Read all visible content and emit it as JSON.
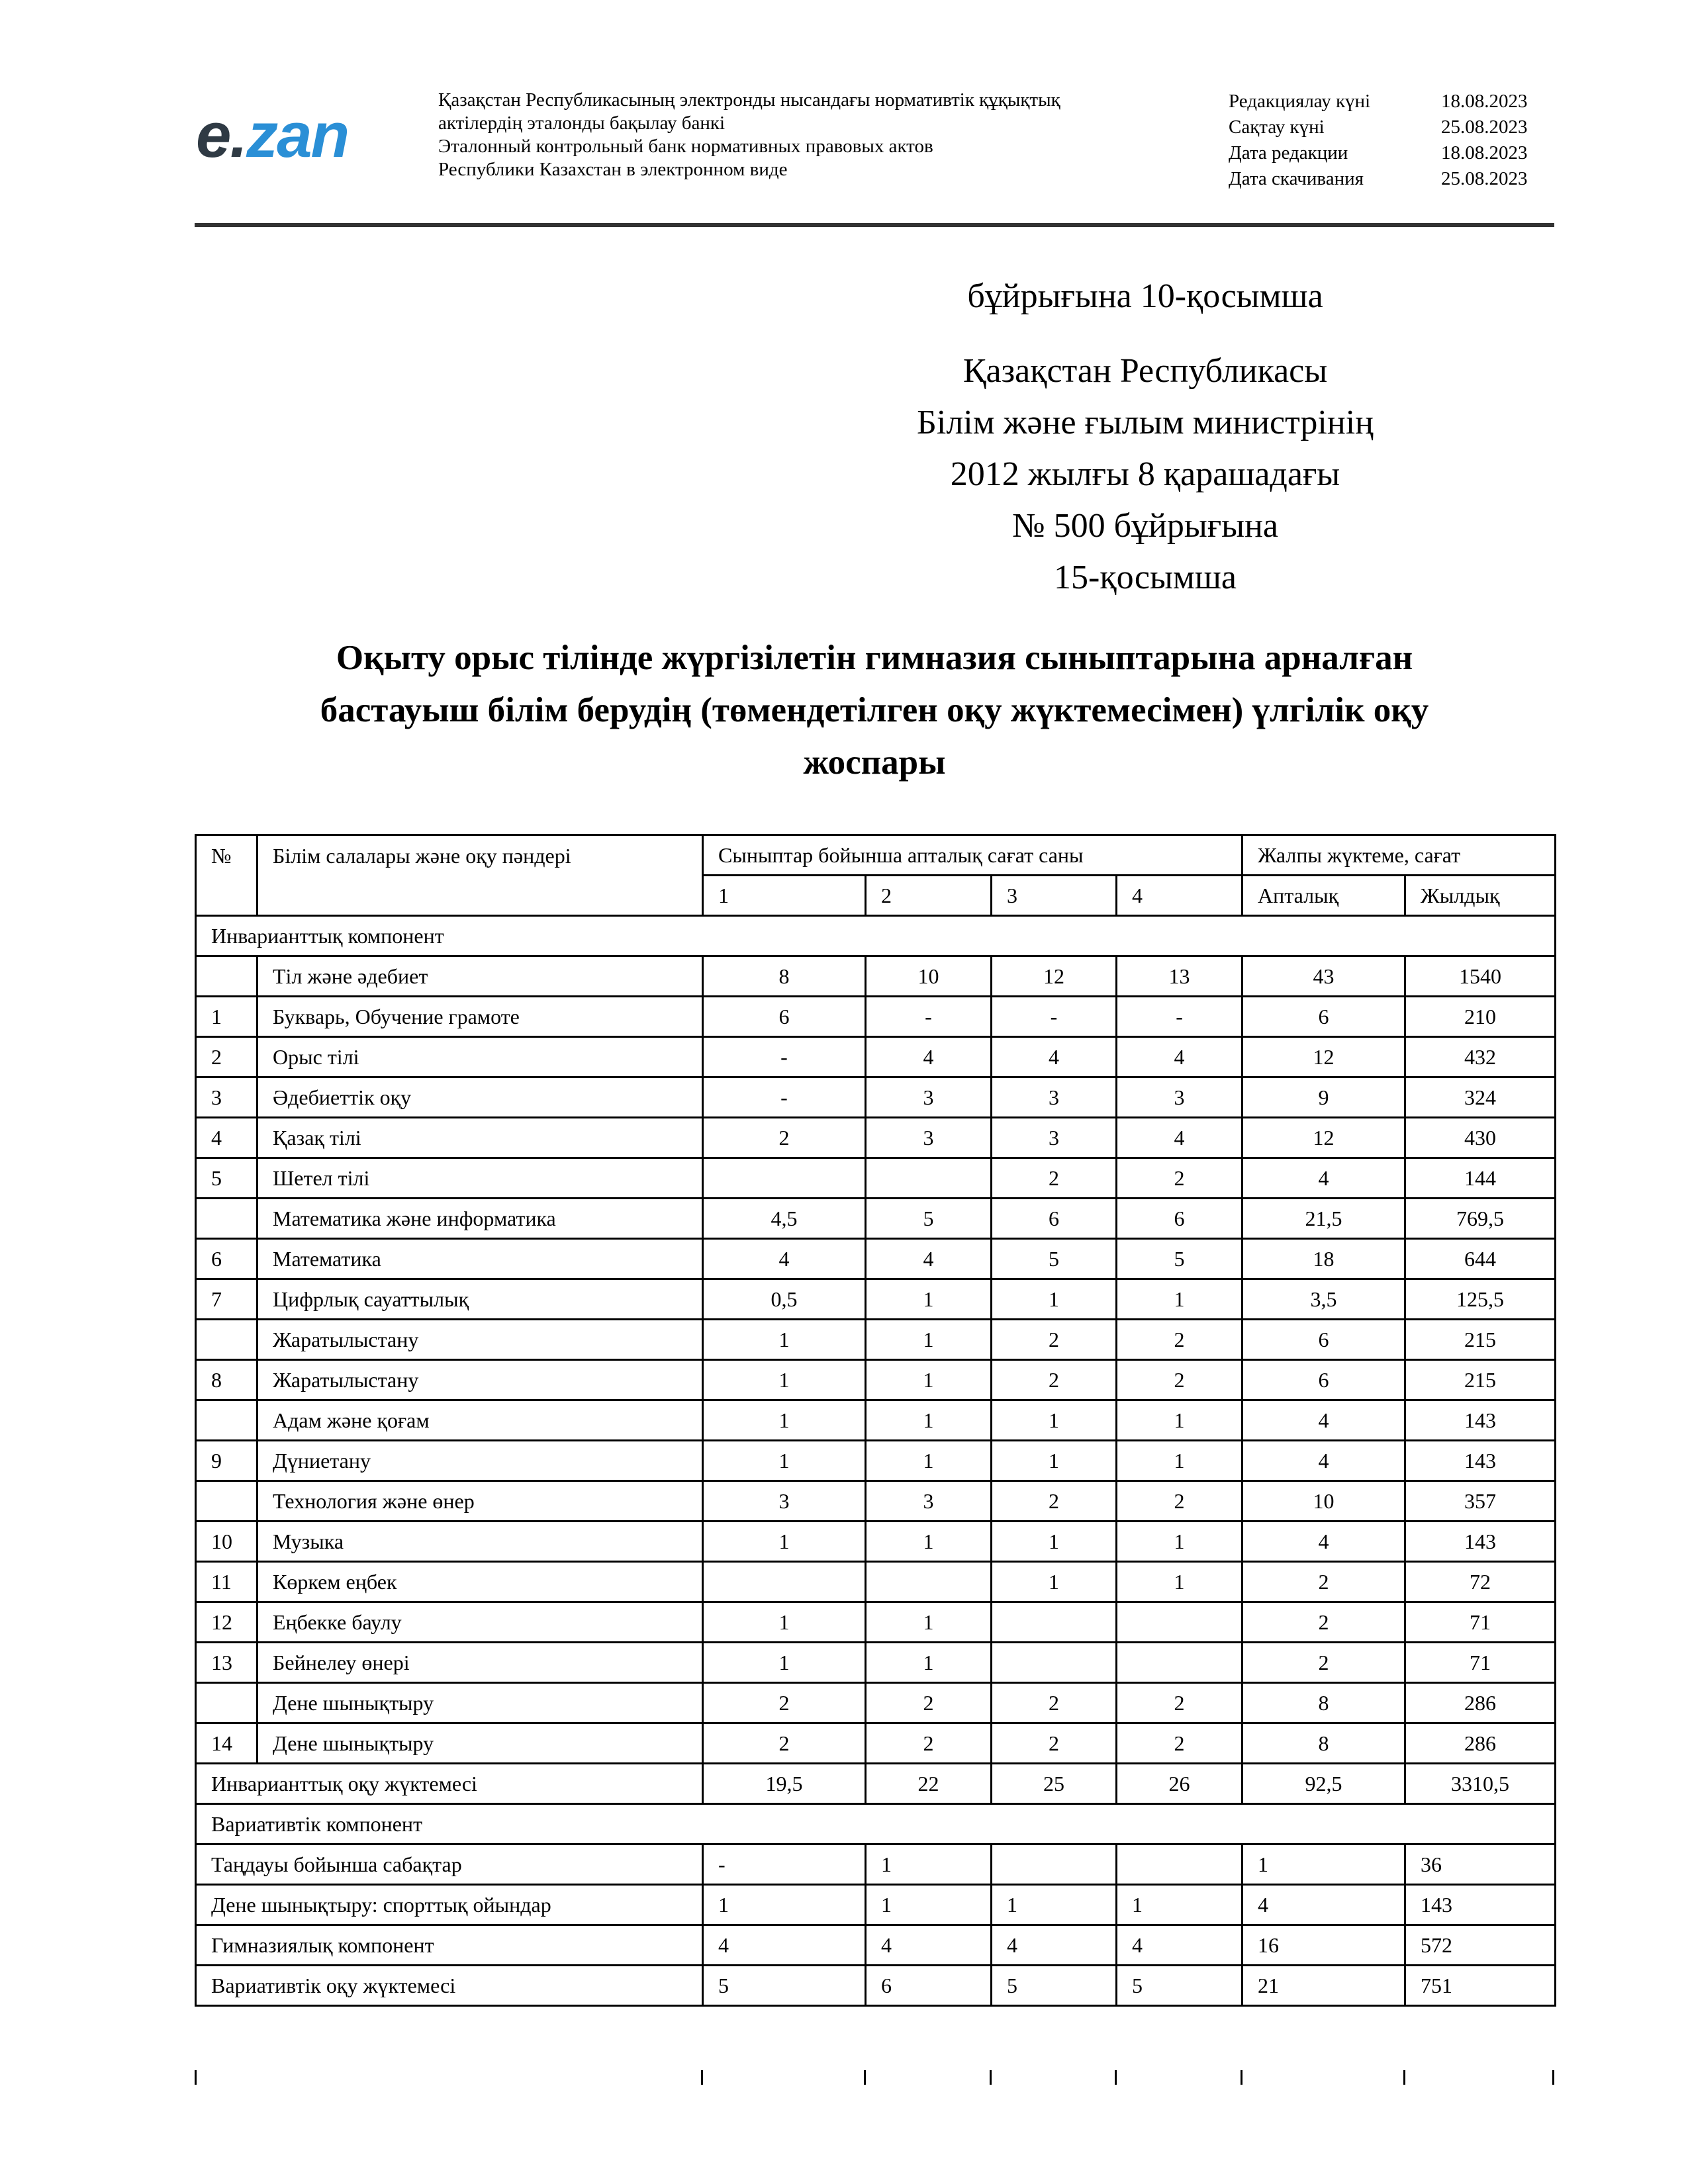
{
  "header": {
    "logo_text": "e.zan",
    "bank_lines": [
      "Қазақстан Республикасының электронды нысандағы нормативтік құқықтық",
      "актілердің эталонды бақылау банкі",
      "Эталонный контрольный банк нормативных правовых актов",
      "Республики Казахстан в электронном виде"
    ],
    "meta": [
      {
        "label": "Редакциялау күні",
        "value": "18.08.2023"
      },
      {
        "label": "Сақтау күні",
        "value": "25.08.2023"
      },
      {
        "label": "Дата редакции",
        "value": "18.08.2023"
      },
      {
        "label": "Дата скачивания",
        "value": "25.08.2023"
      }
    ]
  },
  "annex": {
    "line1": "бұйрығына 10-қосымша",
    "block": [
      "Қазақстан Республикасы",
      "Білім және ғылым министрінің",
      "2012 жылғы 8 қарашадағы",
      "№ 500 бұйрығына",
      "15-қосымша"
    ]
  },
  "title_lines": [
    "Оқыту орыс тілінде жүргізілетін гимназия сыныптарына арналған",
    "бастауыш білім берудің (төмендетілген оқу жүктемесімен) үлгілік оқу",
    "жоспары"
  ],
  "table": {
    "headers": {
      "num": "№",
      "subject": "Білім салалары және оқу пәндері",
      "weekly_by_class": "Сыныптар бойынша апталық сағат саны",
      "total": "Жалпы жүктеме, сағат",
      "classes": [
        "1",
        "2",
        "3",
        "4"
      ],
      "weekly": "Апталық",
      "yearly": "Жылдық"
    },
    "invariant_label": "Инварианттық компонент",
    "invariant_rows": [
      [
        "",
        "Тіл және әдебиет",
        "8",
        "10",
        "12",
        "13",
        "43",
        "1540"
      ],
      [
        "1",
        "Букварь, Обучение грамоте",
        "6",
        "-",
        "-",
        "-",
        "6",
        "210"
      ],
      [
        "2",
        "Орыс тілі",
        "-",
        "4",
        "4",
        "4",
        "12",
        "432"
      ],
      [
        "3",
        "Әдебиеттік оқу",
        "-",
        "3",
        "3",
        "3",
        "9",
        "324"
      ],
      [
        "4",
        "Қазақ тілі",
        "2",
        "3",
        "3",
        "4",
        "12",
        "430"
      ],
      [
        "5",
        "Шетел тілі",
        "",
        "",
        "2",
        "2",
        "4",
        "144"
      ],
      [
        "",
        "Математика және информатика",
        "4,5",
        "5",
        "6",
        "6",
        "21,5",
        "769,5"
      ],
      [
        "6",
        "Математика",
        "4",
        "4",
        "5",
        "5",
        "18",
        "644"
      ],
      [
        "7",
        "Цифрлық сауаттылық",
        "0,5",
        "1",
        "1",
        "1",
        "3,5",
        "125,5"
      ],
      [
        "",
        "Жаратылыстану",
        "1",
        "1",
        "2",
        "2",
        "6",
        "215"
      ],
      [
        "8",
        "Жаратылыстану",
        "1",
        "1",
        "2",
        "2",
        "6",
        "215"
      ],
      [
        "",
        "Адам және қоғам",
        "1",
        "1",
        "1",
        "1",
        "4",
        "143"
      ],
      [
        "9",
        "Дүниетану",
        "1",
        "1",
        "1",
        "1",
        "4",
        "143"
      ],
      [
        "",
        "Технология және өнер",
        "3",
        "3",
        "2",
        "2",
        "10",
        "357"
      ],
      [
        "10",
        "Музыка",
        "1",
        "1",
        "1",
        "1",
        "4",
        "143"
      ],
      [
        "11",
        "Көркем еңбек",
        "",
        "",
        "1",
        "1",
        "2",
        "72"
      ],
      [
        "12",
        "Еңбекке баулу",
        "1",
        "1",
        "",
        "",
        "2",
        "71"
      ],
      [
        "13",
        "Бейнелеу өнері",
        "1",
        "1",
        "",
        "",
        "2",
        "71"
      ],
      [
        "",
        "Дене шынықтыру",
        "2",
        "2",
        "2",
        "2",
        "8",
        "286"
      ],
      [
        "14",
        "Дене шынықтыру",
        "2",
        "2",
        "2",
        "2",
        "8",
        "286"
      ]
    ],
    "invariant_total": [
      "Инварианттық оқу жүктемесі",
      "19,5",
      "22",
      "25",
      "26",
      "92,5",
      "3310,5"
    ],
    "variative_label": "Вариативтік компонент",
    "variative_rows": [
      [
        "Таңдауы бойынша сабақтар",
        "-",
        "1",
        "",
        "",
        "1",
        "36"
      ],
      [
        "Дене шынықтыру: спорттық ойындар",
        "1",
        "1",
        "1",
        "1",
        "4",
        "143"
      ],
      [
        "Гимназиялық компонент",
        "4",
        "4",
        "4",
        "4",
        "16",
        "572"
      ],
      [
        "Вариативтік оқу жүктемесі",
        "5",
        "6",
        "5",
        "5",
        "21",
        "751"
      ]
    ]
  }
}
